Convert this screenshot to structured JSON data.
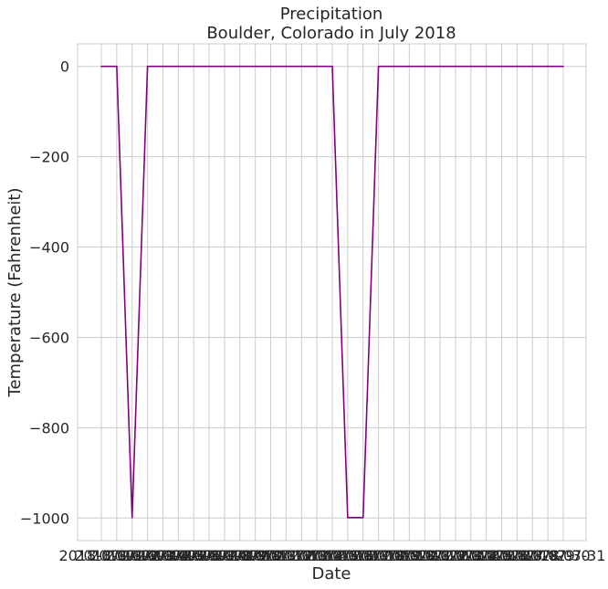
{
  "chart_data": {
    "type": "line",
    "title_line1": "Precipitation",
    "title_line2": "Boulder, Colorado in July 2018",
    "xlabel": "Date",
    "ylabel": "Temperature (Fahrenheit)",
    "x": [
      "2018-07-01",
      "2018-07-02",
      "2018-07-03",
      "2018-07-04",
      "2018-07-05",
      "2018-07-06",
      "2018-07-07",
      "2018-07-08",
      "2018-07-09",
      "2018-07-10",
      "2018-07-11",
      "2018-07-12",
      "2018-07-13",
      "2018-07-14",
      "2018-07-15",
      "2018-07-16",
      "2018-07-17",
      "2018-07-18",
      "2018-07-19",
      "2018-07-20",
      "2018-07-21",
      "2018-07-22",
      "2018-07-23",
      "2018-07-24",
      "2018-07-25",
      "2018-07-26",
      "2018-07-27",
      "2018-07-28",
      "2018-07-29",
      "2018-07-30",
      "2018-07-31"
    ],
    "values": [
      0,
      0,
      -999,
      0,
      0,
      0,
      0,
      0,
      0,
      0,
      0,
      0,
      0,
      0,
      0,
      0,
      -999,
      -999,
      0,
      0,
      0,
      0,
      0,
      0,
      0,
      0,
      0,
      0,
      0,
      0,
      0
    ],
    "ylim": [
      -1050,
      50
    ],
    "yticks": [
      0,
      -200,
      -400,
      -600,
      -800,
      -1000
    ],
    "ytick_labels": [
      "0",
      "−200",
      "−400",
      "−600",
      "−800",
      "−1000"
    ],
    "grid": true,
    "line_color": "#800080"
  }
}
